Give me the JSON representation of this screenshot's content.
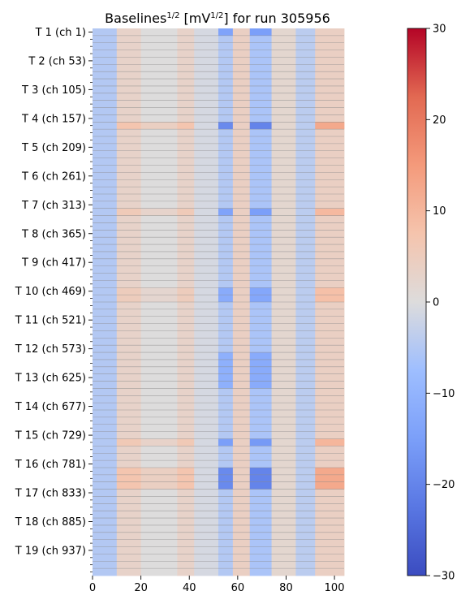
{
  "chart_data": {
    "type": "heatmap",
    "title": {
      "prefix": "Baselines",
      "sup1": "1/2",
      "middle": " [mV",
      "sup2": "1/2",
      "suffix": "] for run 305956"
    },
    "x": {
      "min": 0,
      "max": 104,
      "ticks": [
        0,
        20,
        40,
        60,
        80,
        100
      ]
    },
    "y": {
      "rows": 988,
      "tick_labels": [
        "T 1 (ch 1)",
        "T 2 (ch 53)",
        "T 3 (ch 105)",
        "T 4 (ch 157)",
        "T 5 (ch 209)",
        "T 6 (ch 261)",
        "T 7 (ch 313)",
        "T 8 (ch 365)",
        "T 9 (ch 417)",
        "T 10 (ch 469)",
        "T 11 (ch 521)",
        "T 12 (ch 573)",
        "T 13 (ch 625)",
        "T 14 (ch 677)",
        "T 15 (ch 729)",
        "T 16 (ch 781)",
        "T 17 (ch 833)",
        "T 18 (ch 885)",
        "T 19 (ch 937)"
      ],
      "channels_per_tower": 52
    },
    "colorbar": {
      "colormap": "coolwarm",
      "min": -30,
      "max": 30,
      "ticks": [
        -30,
        -20,
        -10,
        0,
        10,
        20,
        30
      ]
    },
    "pattern": {
      "column_bands": [
        {
          "x": [
            0,
            10
          ],
          "value": -5
        },
        {
          "x": [
            10,
            20
          ],
          "value": 3
        },
        {
          "x": [
            20,
            35
          ],
          "value": 0
        },
        {
          "x": [
            35,
            42
          ],
          "value": 3
        },
        {
          "x": [
            42,
            52
          ],
          "value": -1
        },
        {
          "x": [
            52,
            58
          ],
          "value": -5
        },
        {
          "x": [
            58,
            65
          ],
          "value": 4
        },
        {
          "x": [
            65,
            74
          ],
          "value": -6
        },
        {
          "x": [
            74,
            84
          ],
          "value": 2
        },
        {
          "x": [
            84,
            92
          ],
          "value": -4
        },
        {
          "x": [
            92,
            104
          ],
          "value": 4
        }
      ],
      "row_groups": [
        {
          "rows": [
            0,
            13
          ],
          "value": -9
        },
        {
          "rows": [
            169,
            182
          ],
          "value": 14
        },
        {
          "rows": [
            325,
            338
          ],
          "value": 9
        },
        {
          "rows": [
            468,
            494
          ],
          "value": 7
        },
        {
          "rows": [
            585,
            650
          ],
          "value": -6
        },
        {
          "rows": [
            741,
            754
          ],
          "value": 10
        },
        {
          "rows": [
            793,
            832
          ],
          "value": 14
        }
      ]
    }
  }
}
